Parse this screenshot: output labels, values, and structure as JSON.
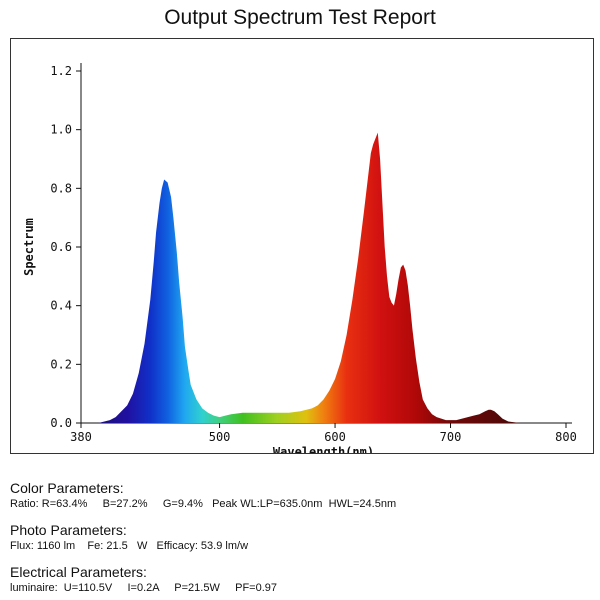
{
  "report": {
    "title": "Output Spectrum Test Report"
  },
  "chart_data": {
    "type": "area",
    "title": "Output Spectrum Test Report",
    "xlabel": "Wavelength(nm)",
    "ylabel": "Spectrum",
    "xlim": [
      380,
      800
    ],
    "ylim": [
      0,
      1.2
    ],
    "xticks": [
      380,
      500,
      600,
      700,
      800
    ],
    "yticks": [
      "0.0",
      "0.2",
      "0.4",
      "0.6",
      "0.8",
      "1.0",
      "1.2"
    ],
    "grid": false,
    "legend": "none",
    "colors": {
      "blue_peak": "#1030c8",
      "red_peak": "#d01010",
      "green": "#40c020",
      "dark_red": "#500808"
    },
    "x": [
      380,
      395,
      405,
      410,
      415,
      420,
      425,
      430,
      435,
      440,
      443,
      445,
      448,
      450,
      452,
      455,
      458,
      460,
      463,
      465,
      468,
      470,
      473,
      475,
      480,
      485,
      490,
      495,
      500,
      505,
      510,
      520,
      530,
      540,
      550,
      560,
      570,
      580,
      585,
      590,
      595,
      600,
      605,
      610,
      615,
      620,
      625,
      628,
      631,
      633,
      635,
      637,
      639,
      641,
      643,
      645,
      647,
      649,
      651,
      653,
      655,
      657,
      659,
      661,
      663,
      665,
      667,
      670,
      673,
      676,
      680,
      684,
      688,
      692,
      696,
      700,
      705,
      710,
      715,
      720,
      725,
      730,
      733,
      735,
      738,
      741,
      745,
      750,
      760,
      800
    ],
    "y": [
      0,
      0,
      0.01,
      0.02,
      0.04,
      0.06,
      0.1,
      0.17,
      0.27,
      0.42,
      0.55,
      0.65,
      0.75,
      0.8,
      0.83,
      0.82,
      0.77,
      0.7,
      0.58,
      0.48,
      0.36,
      0.26,
      0.18,
      0.13,
      0.08,
      0.05,
      0.035,
      0.025,
      0.02,
      0.025,
      0.03,
      0.035,
      0.035,
      0.035,
      0.035,
      0.035,
      0.04,
      0.05,
      0.06,
      0.08,
      0.11,
      0.15,
      0.21,
      0.3,
      0.42,
      0.56,
      0.72,
      0.82,
      0.92,
      0.95,
      0.97,
      0.99,
      0.9,
      0.75,
      0.6,
      0.5,
      0.43,
      0.41,
      0.4,
      0.44,
      0.49,
      0.53,
      0.54,
      0.52,
      0.47,
      0.4,
      0.32,
      0.22,
      0.14,
      0.08,
      0.05,
      0.03,
      0.02,
      0.015,
      0.01,
      0.01,
      0.01,
      0.015,
      0.02,
      0.025,
      0.03,
      0.04,
      0.045,
      0.045,
      0.04,
      0.03,
      0.015,
      0.005,
      0,
      0
    ]
  },
  "color_parameters": {
    "heading": "Color Parameters:",
    "line": "Ratio: R=63.4%     B=27.2%     G=9.4%   Peak WL:LP=635.0nm  HWL=24.5nm"
  },
  "photo_parameters": {
    "heading": "Photo Parameters:",
    "line": "Flux: 1160 lm    Fe: 21.5   W   Efficacy: 53.9 lm/w"
  },
  "electrical_parameters": {
    "heading": "Electrical Parameters:",
    "line": "luminaire:  U=110.5V     I=0.2A     P=21.5W     PF=0.97"
  }
}
